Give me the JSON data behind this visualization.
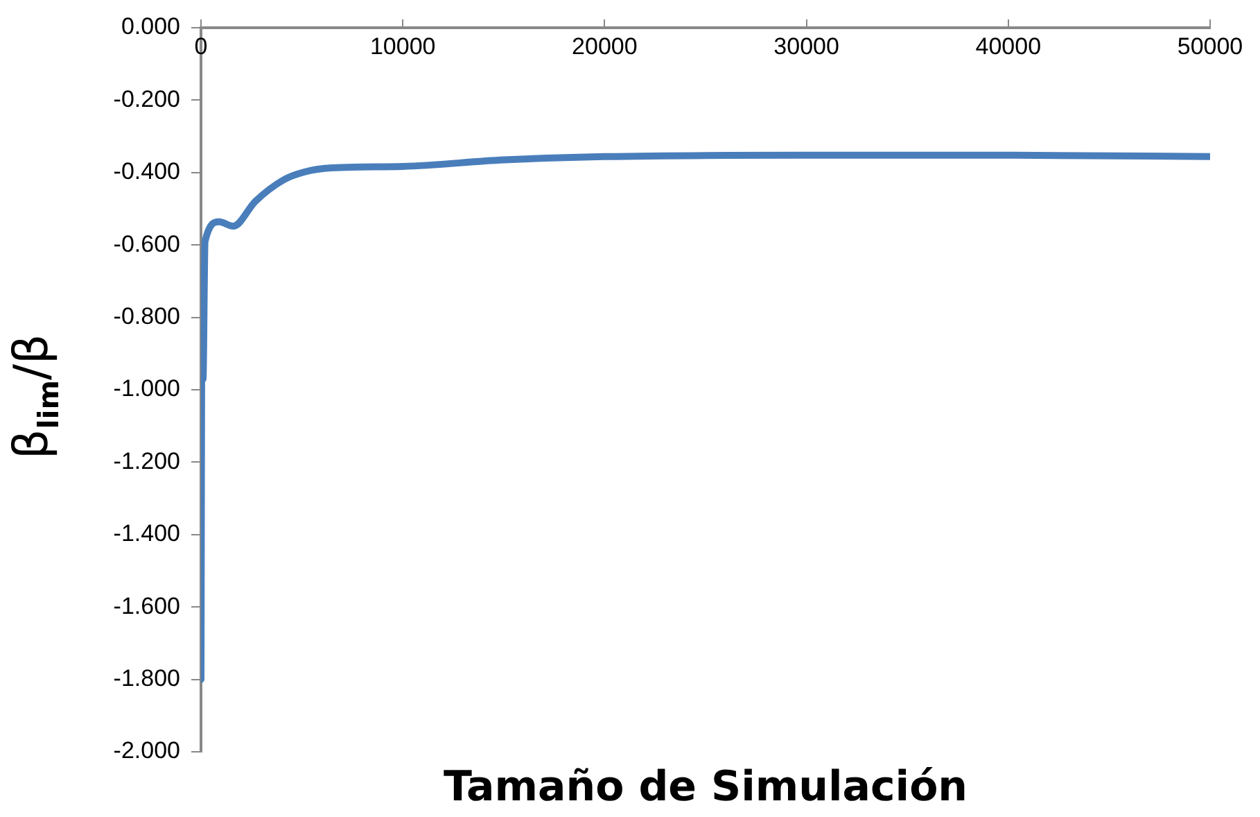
{
  "chart_data": {
    "type": "line",
    "xlabel": "Tamaño de Simulación",
    "ylabel": "β$_{lim}$/β",
    "x": [
      0,
      50,
      100,
      200,
      900,
      1600,
      2700,
      4100,
      5150,
      6500,
      10000,
      15000,
      20000,
      30000,
      40000,
      50000
    ],
    "series": [
      {
        "color": "#4a7ebb",
        "values": [
          -1.8,
          -0.77,
          -0.97,
          -0.59,
          -0.536,
          -0.548,
          -0.479,
          -0.42,
          -0.398,
          -0.387,
          -0.383,
          -0.365,
          -0.356,
          -0.352,
          -0.352,
          -0.356
        ]
      }
    ],
    "xlim": [
      0,
      50000
    ],
    "xticks": [
      0,
      10000,
      20000,
      30000,
      40000,
      50000
    ],
    "ylim": [
      -2,
      0
    ],
    "yticks": [
      {
        "value": 0,
        "label": "0.000"
      },
      {
        "value": -0.2,
        "label": "-0.200"
      },
      {
        "value": -0.4,
        "label": "-0.400"
      },
      {
        "value": -0.6,
        "label": "-0.600"
      },
      {
        "value": -0.8,
        "label": "-0.800"
      },
      {
        "value": -1,
        "label": "-1.000"
      },
      {
        "value": -1.2,
        "label": "-1.200"
      },
      {
        "value": -1.4,
        "label": "-1.400"
      },
      {
        "value": -1.6,
        "label": "-1.600"
      },
      {
        "value": -1.8,
        "label": "-1.800"
      },
      {
        "value": -2,
        "label": "-2.000"
      }
    ],
    "grid": false,
    "legend": false,
    "marker": "none",
    "line_style": "solid"
  }
}
